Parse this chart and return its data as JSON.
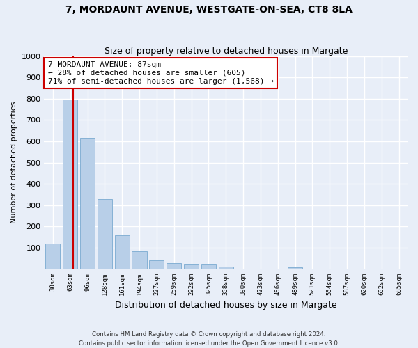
{
  "title": "7, MORDAUNT AVENUE, WESTGATE-ON-SEA, CT8 8LA",
  "subtitle": "Size of property relative to detached houses in Margate",
  "xlabel": "Distribution of detached houses by size in Margate",
  "ylabel": "Number of detached properties",
  "bar_color": "#b8cfe8",
  "bar_edge_color": "#7aaad0",
  "categories": [
    "30sqm",
    "63sqm",
    "96sqm",
    "128sqm",
    "161sqm",
    "194sqm",
    "227sqm",
    "259sqm",
    "292sqm",
    "325sqm",
    "358sqm",
    "390sqm",
    "423sqm",
    "456sqm",
    "489sqm",
    "521sqm",
    "554sqm",
    "587sqm",
    "620sqm",
    "652sqm",
    "685sqm"
  ],
  "values": [
    120,
    795,
    615,
    330,
    158,
    82,
    40,
    27,
    22,
    22,
    13,
    3,
    0,
    0,
    8,
    0,
    0,
    0,
    0,
    0,
    0
  ],
  "property_label": "7 MORDAUNT AVENUE: 87sqm",
  "annotation_line1": "← 28% of detached houses are smaller (605)",
  "annotation_line2": "71% of semi-detached houses are larger (1,568) →",
  "footnote1": "Contains HM Land Registry data © Crown copyright and database right 2024.",
  "footnote2": "Contains public sector information licensed under the Open Government Licence v3.0.",
  "bg_color": "#e8eef8",
  "plot_bg_color": "#e8eef8",
  "grid_color": "#ffffff",
  "annotation_box_color": "#ffffff",
  "annotation_box_edge": "#cc0000",
  "vline_color": "#cc0000",
  "ylim": [
    0,
    1000
  ],
  "yticks": [
    0,
    100,
    200,
    300,
    400,
    500,
    600,
    700,
    800,
    900,
    1000
  ]
}
